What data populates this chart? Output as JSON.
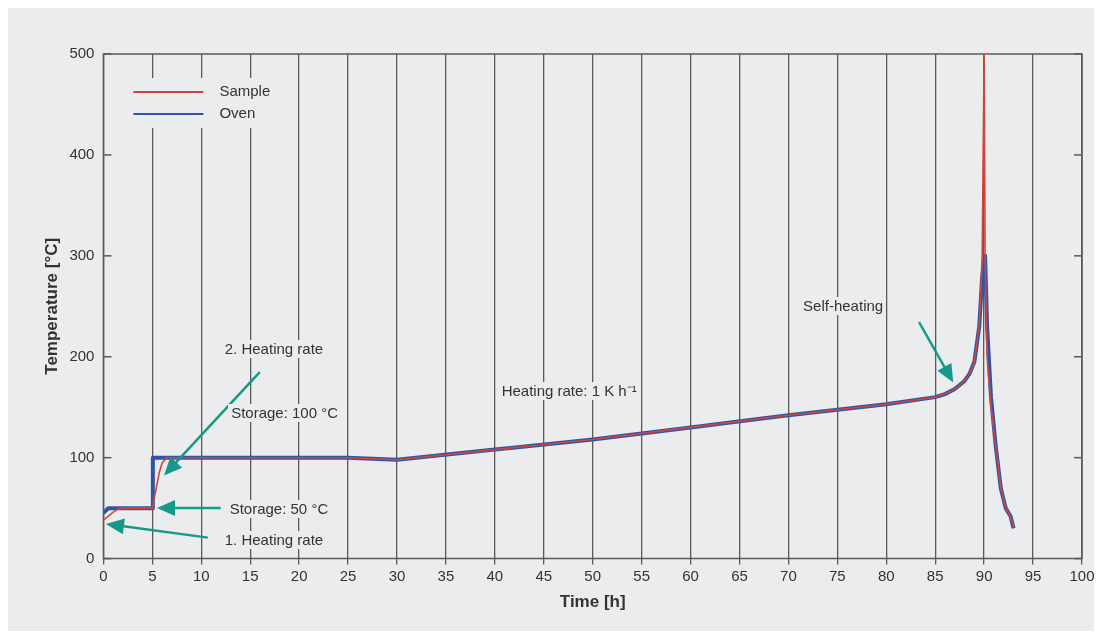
{
  "chart_data": {
    "type": "line",
    "xlabel": "Time [h]",
    "ylabel": "Temperature [°C]",
    "xlim": [
      0,
      100
    ],
    "xticks": [
      0,
      5,
      10,
      15,
      20,
      25,
      30,
      35,
      40,
      45,
      50,
      55,
      60,
      65,
      70,
      75,
      80,
      85,
      90,
      95,
      100
    ],
    "ylim": [
      0,
      500
    ],
    "yticks": [
      0,
      100,
      200,
      300,
      400,
      500
    ],
    "grid": "x",
    "legend": "top left",
    "marker": "none",
    "line_style": "solid",
    "series": [
      {
        "name": "Sample",
        "color": "#d0463c",
        "x": [
          0,
          0.5,
          1,
          1.5,
          2,
          5,
          5.3,
          5.7,
          6,
          6.5,
          25,
          30,
          40,
          50,
          60,
          70,
          80,
          85,
          86,
          87,
          88,
          88.5,
          89,
          89.5,
          89.8,
          90,
          90.1,
          90.3,
          90.7,
          91.2,
          91.7,
          92.2,
          92.7,
          93
        ],
        "values": [
          38,
          42,
          46,
          49,
          50,
          50,
          65,
          85,
          95,
          100,
          100,
          98,
          108,
          118,
          130,
          142,
          153,
          160,
          163,
          168,
          176,
          183,
          195,
          230,
          300,
          500,
          300,
          200,
          150,
          110,
          70,
          50,
          42,
          30
        ]
      },
      {
        "name": "Oven",
        "color": "#2f55a4",
        "x": [
          0,
          0.3,
          0.5,
          5,
          5.05,
          25,
          30,
          40,
          50,
          60,
          70,
          80,
          85,
          86,
          87,
          88,
          88.5,
          89,
          89.5,
          89.8,
          90.1,
          90.3,
          90.7,
          91.2,
          91.7,
          92.2,
          92.7,
          93
        ],
        "values": [
          45,
          48,
          50,
          50,
          100,
          100,
          98,
          108,
          118,
          130,
          142,
          153,
          160,
          163,
          168,
          176,
          183,
          195,
          230,
          280,
          300,
          230,
          160,
          110,
          70,
          50,
          42,
          30
        ]
      }
    ],
    "annotations": [
      "1. Heating rate",
      "Storage: 50 °C",
      "2. Heating rate",
      {
        "text": "Storage: 100 °C",
        "x": 20,
        "y": 100
      },
      {
        "text": "Heating rate: 1 K h⁻¹",
        "x": 55,
        "y": 125
      },
      "Self-heating"
    ]
  }
}
